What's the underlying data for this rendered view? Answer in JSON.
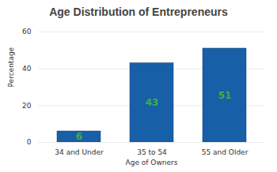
{
  "chart_data": {
    "type": "bar",
    "title": "Age Distribution of Entrepreneurs",
    "x_label": "Age of Owners",
    "y_label": "Percentage",
    "categories": [
      "34 and Under",
      "35 to 54",
      "55 and Older"
    ],
    "values": [
      6,
      43,
      51
    ],
    "color": "#1760a8",
    "ylim": [
      0,
      60
    ],
    "yticks": [
      0,
      20,
      40,
      60
    ],
    "grid": true,
    "data_labels": true
  }
}
